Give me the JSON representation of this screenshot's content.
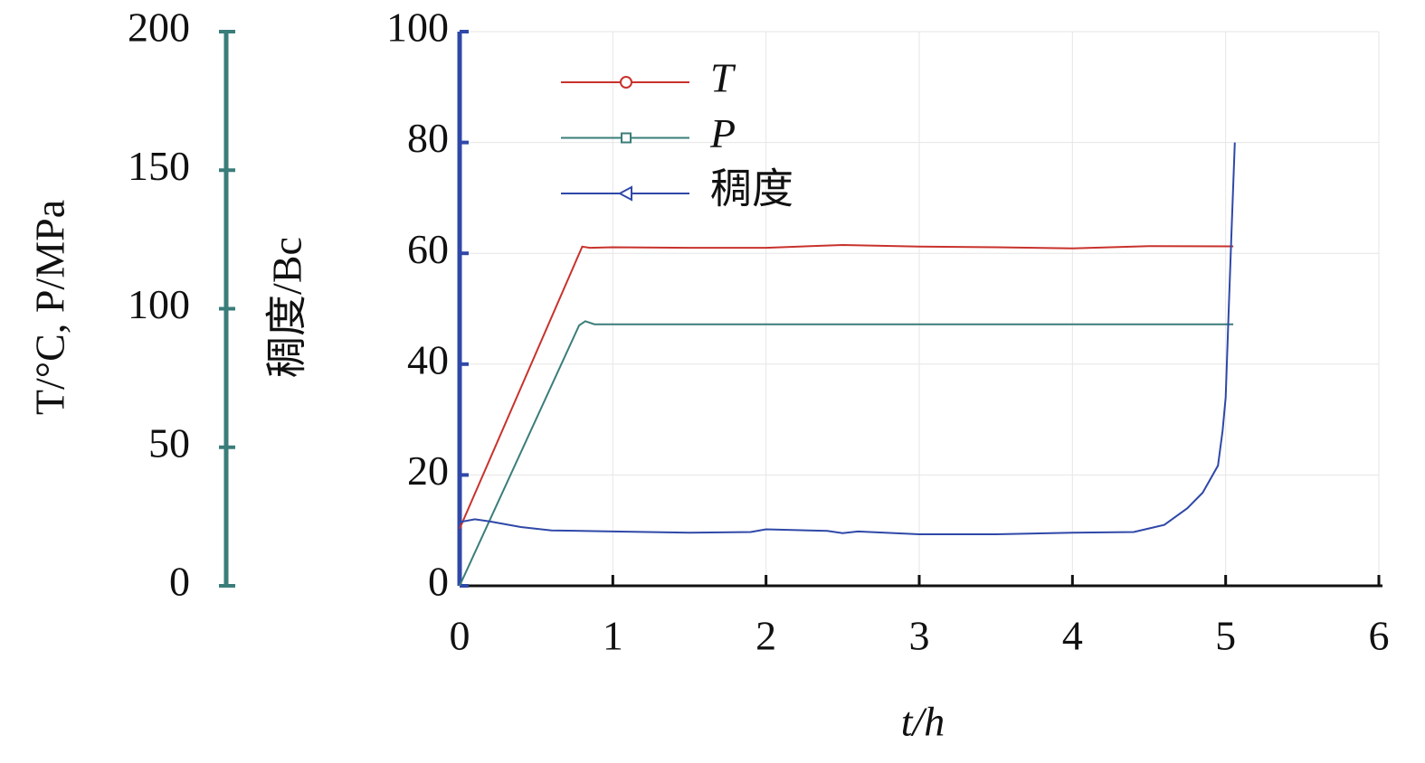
{
  "chart_data": {
    "type": "line",
    "x_label": "t/h",
    "y_label": "稠度/Bc",
    "y2_label": "T/°C, P/MPa",
    "xlim": [
      0,
      6
    ],
    "xticks": [
      0,
      1,
      2,
      3,
      4,
      5,
      6
    ],
    "ylim": [
      0,
      100
    ],
    "yticks": [
      0,
      20,
      40,
      60,
      80,
      100
    ],
    "y2lim": [
      0,
      200
    ],
    "y2ticks": [
      0,
      50,
      100,
      150,
      200
    ],
    "grid": true,
    "legend": "upper left",
    "axis_color": "#2f48a8",
    "axis2_color": "#3a7d7a",
    "series": [
      {
        "name": "T",
        "color": "#c8322c",
        "marker": "circle",
        "axis": "y2",
        "x": [
          0,
          0.8,
          0.85,
          1,
          1.5,
          2,
          2.5,
          3,
          3.5,
          4,
          4.5,
          5.05
        ],
        "values": [
          20.6,
          122.4,
          122,
          122.2,
          122,
          122,
          123,
          122.4,
          122.2,
          121.8,
          122.6,
          122.5
        ]
      },
      {
        "name": "P",
        "color": "#3a7d7a",
        "marker": "square",
        "axis": "y2",
        "x": [
          0,
          0.78,
          0.82,
          0.88,
          1,
          2,
          3,
          4,
          5.05
        ],
        "values": [
          0,
          94,
          95.5,
          94.4,
          94.4,
          94.4,
          94.4,
          94.4,
          94.4
        ]
      },
      {
        "name": "稠度",
        "color": "#2f48a8",
        "marker": "triangle-left",
        "x": [
          0,
          0.1,
          0.2,
          0.4,
          0.6,
          1,
          1.5,
          1.9,
          2,
          2.4,
          2.5,
          2.6,
          3,
          3.5,
          4,
          4.4,
          4.6,
          4.75,
          4.85,
          4.95,
          4.98,
          5.0,
          5.02,
          5.04,
          5.06
        ],
        "values": [
          11.5,
          12,
          11.6,
          10.6,
          10,
          9.8,
          9.6,
          9.7,
          10.2,
          9.9,
          9.5,
          9.8,
          9.3,
          9.3,
          9.6,
          9.7,
          11,
          14,
          16.8,
          21.7,
          28,
          34,
          50,
          65,
          80
        ]
      }
    ]
  }
}
